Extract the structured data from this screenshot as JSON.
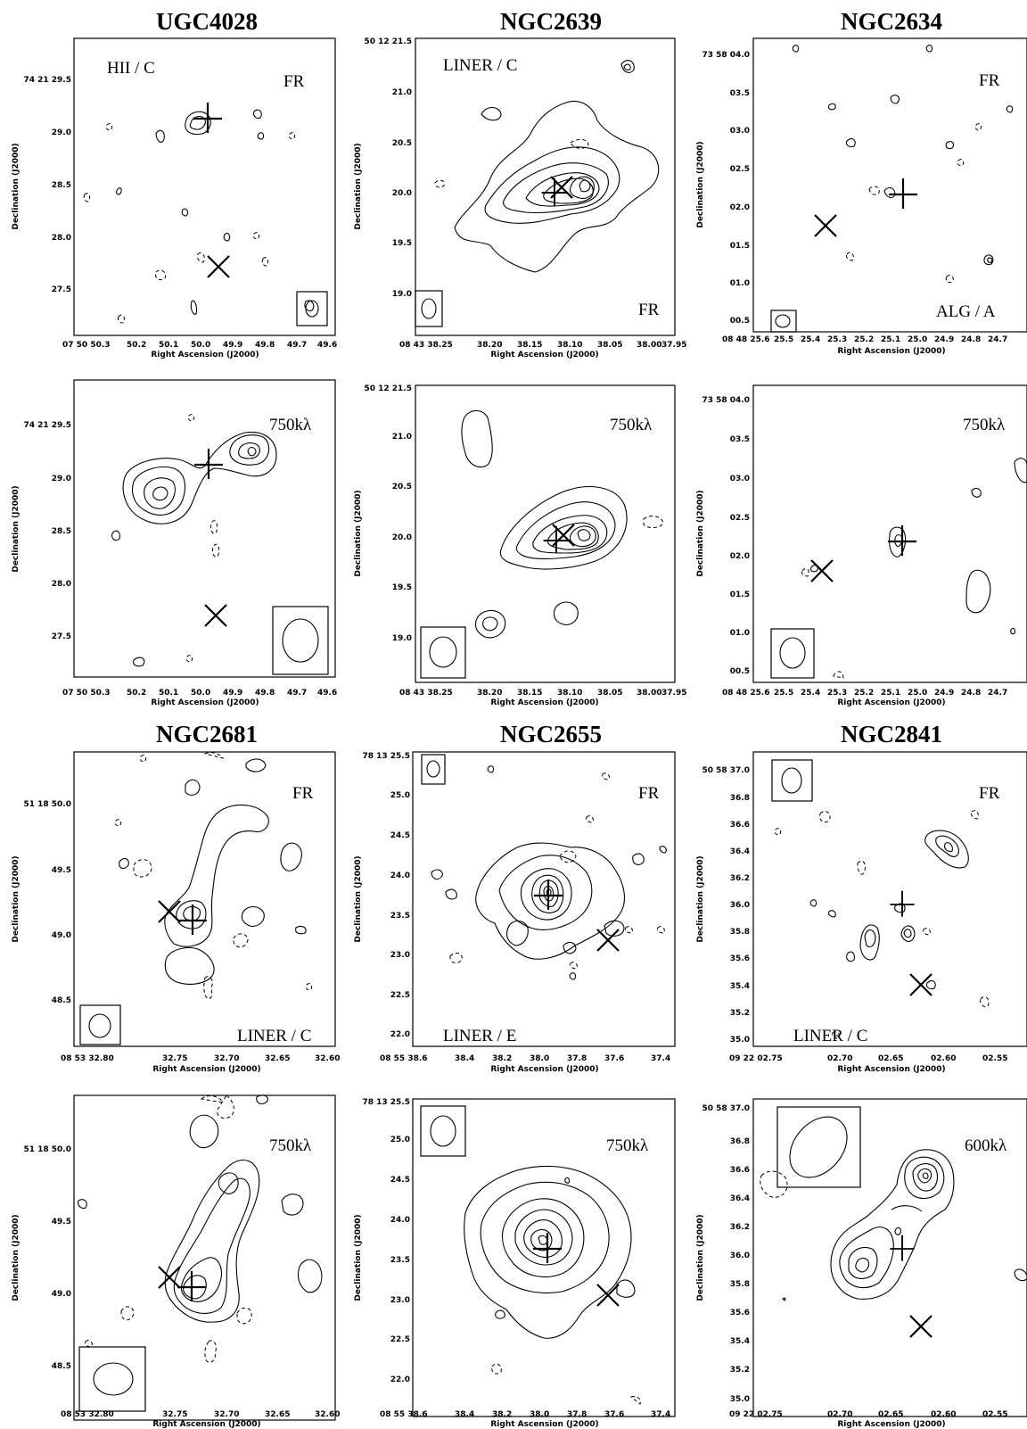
{
  "figure": {
    "panels": [
      {
        "id": "p1",
        "title": "UGC4028",
        "ylabel": "Declination (J2000)",
        "xlabel": "Right Ascension (J2000)",
        "yticks": [
          "74 21 29.5",
          "29.0",
          "28.5",
          "28.0",
          "27.5"
        ],
        "xticks": [
          "07 50 50.3",
          "50.2",
          "50.1",
          "50.0",
          "49.9",
          "49.8",
          "49.7",
          "49.6"
        ],
        "notes": [
          "HII / C",
          "FR"
        ]
      },
      {
        "id": "p2",
        "title": "NGC2639",
        "ylabel": "Declination (J2000)",
        "xlabel": "Right Ascension (J2000)",
        "yticks": [
          "50 12 21.5",
          "21.0",
          "20.5",
          "20.0",
          "19.5",
          "19.0"
        ],
        "xticks": [
          "08 43 38.25",
          "38.20",
          "38.15",
          "38.10",
          "38.05",
          "38.00",
          "37.95"
        ],
        "notes": [
          "LINER / C",
          "FR"
        ]
      },
      {
        "id": "p3",
        "title": "NGC2634",
        "ylabel": "Declination (J2000)",
        "xlabel": "Right Ascension (J2000)",
        "yticks": [
          "73 58 04.0",
          "03.5",
          "03.0",
          "02.5",
          "02.0",
          "01.5",
          "01.0",
          "00.5"
        ],
        "xticks": [
          "08 48 25.6",
          "25.5",
          "25.4",
          "25.3",
          "25.2",
          "25.1",
          "25.0",
          "24.9",
          "24.8",
          "24.7"
        ],
        "notes": [
          "FR",
          "ALG / A"
        ]
      },
      {
        "id": "p4",
        "title": "",
        "ylabel": "Declination (J2000)",
        "xlabel": "Right Ascension (J2000)",
        "yticks": [
          "74 21 29.5",
          "29.0",
          "28.5",
          "28.0",
          "27.5"
        ],
        "xticks": [
          "07 50 50.3",
          "50.2",
          "50.1",
          "50.0",
          "49.9",
          "49.8",
          "49.7",
          "49.6"
        ],
        "notes": [
          "750kλ"
        ]
      },
      {
        "id": "p5",
        "title": "",
        "ylabel": "Declination (J2000)",
        "xlabel": "Right Ascension (J2000)",
        "yticks": [
          "50 12 21.5",
          "21.0",
          "20.5",
          "20.0",
          "19.5",
          "19.0"
        ],
        "xticks": [
          "08 43 38.25",
          "38.20",
          "38.15",
          "38.10",
          "38.05",
          "38.00",
          "37.95"
        ],
        "notes": [
          "750kλ"
        ]
      },
      {
        "id": "p6",
        "title": "",
        "ylabel": "Declination (J2000)",
        "xlabel": "Right Ascension (J2000)",
        "yticks": [
          "73 58 04.0",
          "03.5",
          "03.0",
          "02.5",
          "02.0",
          "01.5",
          "01.0",
          "00.5"
        ],
        "xticks": [
          "08 48 25.6",
          "25.5",
          "25.4",
          "25.3",
          "25.2",
          "25.1",
          "25.0",
          "24.9",
          "24.8",
          "24.7"
        ],
        "notes": [
          "750kλ"
        ]
      },
      {
        "id": "p7",
        "title": "NGC2681",
        "ylabel": "Declination (J2000)",
        "xlabel": "Right Ascension (J2000)",
        "yticks": [
          "51 18 50.0",
          "49.5",
          "49.0",
          "48.5"
        ],
        "xticks": [
          "08 53 32.80",
          "32.75",
          "32.70",
          "32.65",
          "32.60"
        ],
        "notes": [
          "FR",
          "LINER / C"
        ]
      },
      {
        "id": "p8",
        "title": "NGC2655",
        "ylabel": "Declination (J2000)",
        "xlabel": "Right Ascension (J2000)",
        "yticks": [
          "78 13 25.5",
          "25.0",
          "24.5",
          "24.0",
          "23.5",
          "23.0",
          "22.5",
          "22.0"
        ],
        "xticks": [
          "08 55 38.6",
          "38.4",
          "38.2",
          "38.0",
          "37.8",
          "37.6",
          "37.4"
        ],
        "notes": [
          "FR",
          "LINER / E"
        ]
      },
      {
        "id": "p9",
        "title": "NGC2841",
        "ylabel": "Declination (J2000)",
        "xlabel": "Right Ascension (J2000)",
        "yticks": [
          "50 58 37.0",
          "36.8",
          "36.6",
          "36.4",
          "36.2",
          "36.0",
          "35.8",
          "35.6",
          "35.4",
          "35.2",
          "35.0"
        ],
        "xticks": [
          "09 22 02.75",
          "02.70",
          "02.65",
          "02.60",
          "02.55"
        ],
        "notes": [
          "FR",
          "LINER / C"
        ]
      },
      {
        "id": "p10",
        "title": "",
        "ylabel": "Declination (J2000)",
        "xlabel": "Right Ascension (J2000)",
        "yticks": [
          "51 18 50.0",
          "49.5",
          "49.0",
          "48.5"
        ],
        "xticks": [
          "08 53 32.80",
          "32.75",
          "32.70",
          "32.65",
          "32.60"
        ],
        "notes": [
          "750kλ"
        ]
      },
      {
        "id": "p11",
        "title": "",
        "ylabel": "Declination (J2000)",
        "xlabel": "Right Ascension (J2000)",
        "yticks": [
          "78 13 25.5",
          "25.0",
          "24.5",
          "24.0",
          "23.5",
          "23.0",
          "22.5",
          "22.0"
        ],
        "xticks": [
          "08 55 38.6",
          "38.4",
          "38.2",
          "38.0",
          "37.8",
          "37.6",
          "37.4"
        ],
        "notes": [
          "750kλ"
        ]
      },
      {
        "id": "p12",
        "title": "",
        "ylabel": "Declination (J2000)",
        "xlabel": "Right Ascension (J2000)",
        "yticks": [
          "50 58 37.0",
          "36.8",
          "36.6",
          "36.4",
          "36.2",
          "36.0",
          "35.8",
          "35.6",
          "35.4",
          "35.2",
          "35.0"
        ],
        "xticks": [
          "09 22 02.75",
          "02.70",
          "02.65",
          "02.60",
          "02.55"
        ],
        "notes": [
          "600kλ"
        ]
      }
    ]
  }
}
